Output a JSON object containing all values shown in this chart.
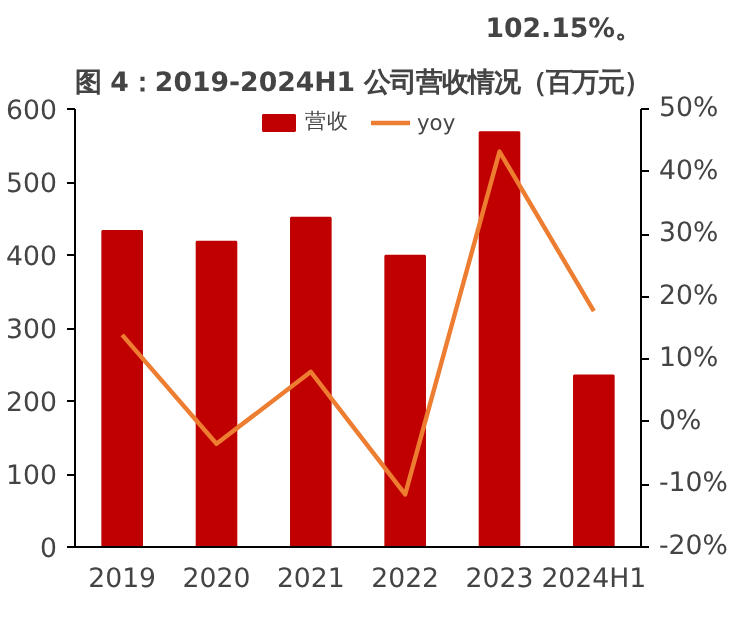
{
  "chart_data": {
    "type": "bar",
    "title": "图 4：2019-2024H1 公司营收情况（百万元）",
    "categories": [
      "2019",
      "2020",
      "2021",
      "2022",
      "2023",
      "2024H1"
    ],
    "series": [
      {
        "name": "营收",
        "color": "#c00000",
        "values": [
          433,
          418,
          451,
          399,
          568,
          235
        ]
      },
      {
        "name": "yoy",
        "type": "line",
        "axis": "y2",
        "color": "#ed7d31",
        "values": [
          13.9,
          -3.5,
          8.0,
          -11.6,
          43.2,
          17.7
        ]
      }
    ],
    "ylim": [
      0,
      600
    ],
    "yticks": [
      0,
      100,
      200,
      300,
      400,
      500,
      600
    ],
    "y2lim": [
      -20,
      50
    ],
    "y2ticks": [
      {
        "value": -20,
        "label": "-20%"
      },
      {
        "value": -10,
        "label": "-10%"
      },
      {
        "value": 0,
        "label": "0%"
      },
      {
        "value": 10,
        "label": "10%"
      },
      {
        "value": 20,
        "label": "20%"
      },
      {
        "value": 30,
        "label": "30%"
      },
      {
        "value": 40,
        "label": "40%"
      },
      {
        "value": 50,
        "label": "50%"
      }
    ],
    "grid": false,
    "legend": "top",
    "marker": "none",
    "line_style": "solid",
    "annotations": [
      "102.15%。"
    ]
  }
}
